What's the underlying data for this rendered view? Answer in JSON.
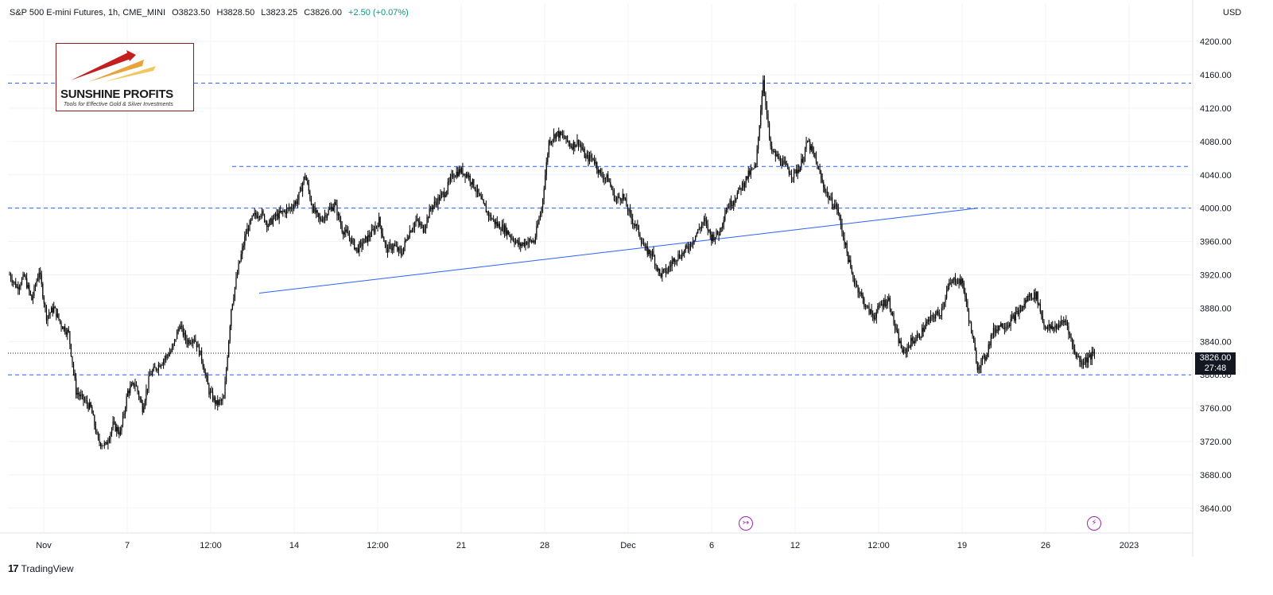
{
  "header": {
    "symbol": "S&P 500 E-mini Futures, 1h, CME_MINI",
    "open": "O3823.50",
    "high": "H3828.50",
    "low": "L3823.25",
    "close": "C3826.00",
    "change": "+2.50 (+0.07%)"
  },
  "currency": "USD",
  "brand": {
    "name": "SUNSHINE PROFITS",
    "tagline": "Tools for Effective Gold & Silver Investments"
  },
  "footer": {
    "name": "TradingView"
  },
  "price_badge": {
    "price": "3826.00",
    "countdown": "27:48"
  },
  "colors": {
    "candle": "#000000",
    "level_line": "#2962ff",
    "trend_line": "#2962ff",
    "event": "#9c27b0",
    "up": "#089981"
  },
  "icons": [
    "split-event-icon",
    "dividend-event-icon",
    "tradingview-logo-icon"
  ],
  "chart_data": {
    "type": "candlestick",
    "x_tick_labels": [
      "Nov",
      "7",
      "12:00",
      "14",
      "12:00",
      "21",
      "28",
      "Dec",
      "6",
      "12",
      "12:00",
      "19",
      "26",
      "2023"
    ],
    "y_tick_labels": [
      "4200.00",
      "4160.00",
      "4120.00",
      "4080.00",
      "4040.00",
      "4000.00",
      "3960.00",
      "3920.00",
      "3880.00",
      "3840.00",
      "3800.00",
      "3760.00",
      "3720.00",
      "3680.00",
      "3640.00"
    ],
    "ylim": [
      3615,
      4245
    ],
    "last_price": 3826.0,
    "horizontal_levels": [
      {
        "price": 4150,
        "style": "dashed"
      },
      {
        "price": 4050,
        "style": "dashed"
      },
      {
        "price": 4000,
        "style": "dashed"
      },
      {
        "price": 3800,
        "style": "dashed"
      }
    ],
    "trend_line": {
      "from_price": 3898,
      "to_price": 4000
    },
    "price_path": [
      3920,
      3905,
      3918,
      3890,
      3925,
      3870,
      3880,
      3860,
      3850,
      3780,
      3770,
      3760,
      3720,
      3715,
      3740,
      3730,
      3780,
      3790,
      3760,
      3800,
      3810,
      3820,
      3830,
      3860,
      3840,
      3845,
      3820,
      3780,
      3765,
      3770,
      3880,
      3930,
      3970,
      3990,
      3995,
      3980,
      3990,
      3995,
      4000,
      4010,
      4040,
      4000,
      3985,
      3995,
      4005,
      3975,
      3965,
      3950,
      3960,
      3970,
      3985,
      3950,
      3955,
      3945,
      3970,
      3985,
      3975,
      4000,
      4010,
      4020,
      4040,
      4045,
      4040,
      4025,
      4005,
      3990,
      3980,
      3975,
      3965,
      3955,
      3960,
      3960,
      4000,
      4080,
      4090,
      4085,
      4075,
      4080,
      4060,
      4060,
      4040,
      4035,
      4010,
      4015,
      3990,
      3975,
      3950,
      3945,
      3920,
      3925,
      3940,
      3945,
      3955,
      3970,
      3985,
      3965,
      3970,
      4000,
      4010,
      4025,
      4040,
      4050,
      4155,
      4070,
      4060,
      4050,
      4040,
      4050,
      4080,
      4060,
      4030,
      4010,
      4000,
      3960,
      3920,
      3900,
      3880,
      3870,
      3885,
      3890,
      3850,
      3825,
      3840,
      3845,
      3860,
      3870,
      3875,
      3905,
      3915,
      3910,
      3860,
      3810,
      3820,
      3850,
      3860,
      3860,
      3870,
      3880,
      3895,
      3895,
      3860,
      3855,
      3860,
      3865,
      3830,
      3815,
      3820,
      3826
    ]
  }
}
